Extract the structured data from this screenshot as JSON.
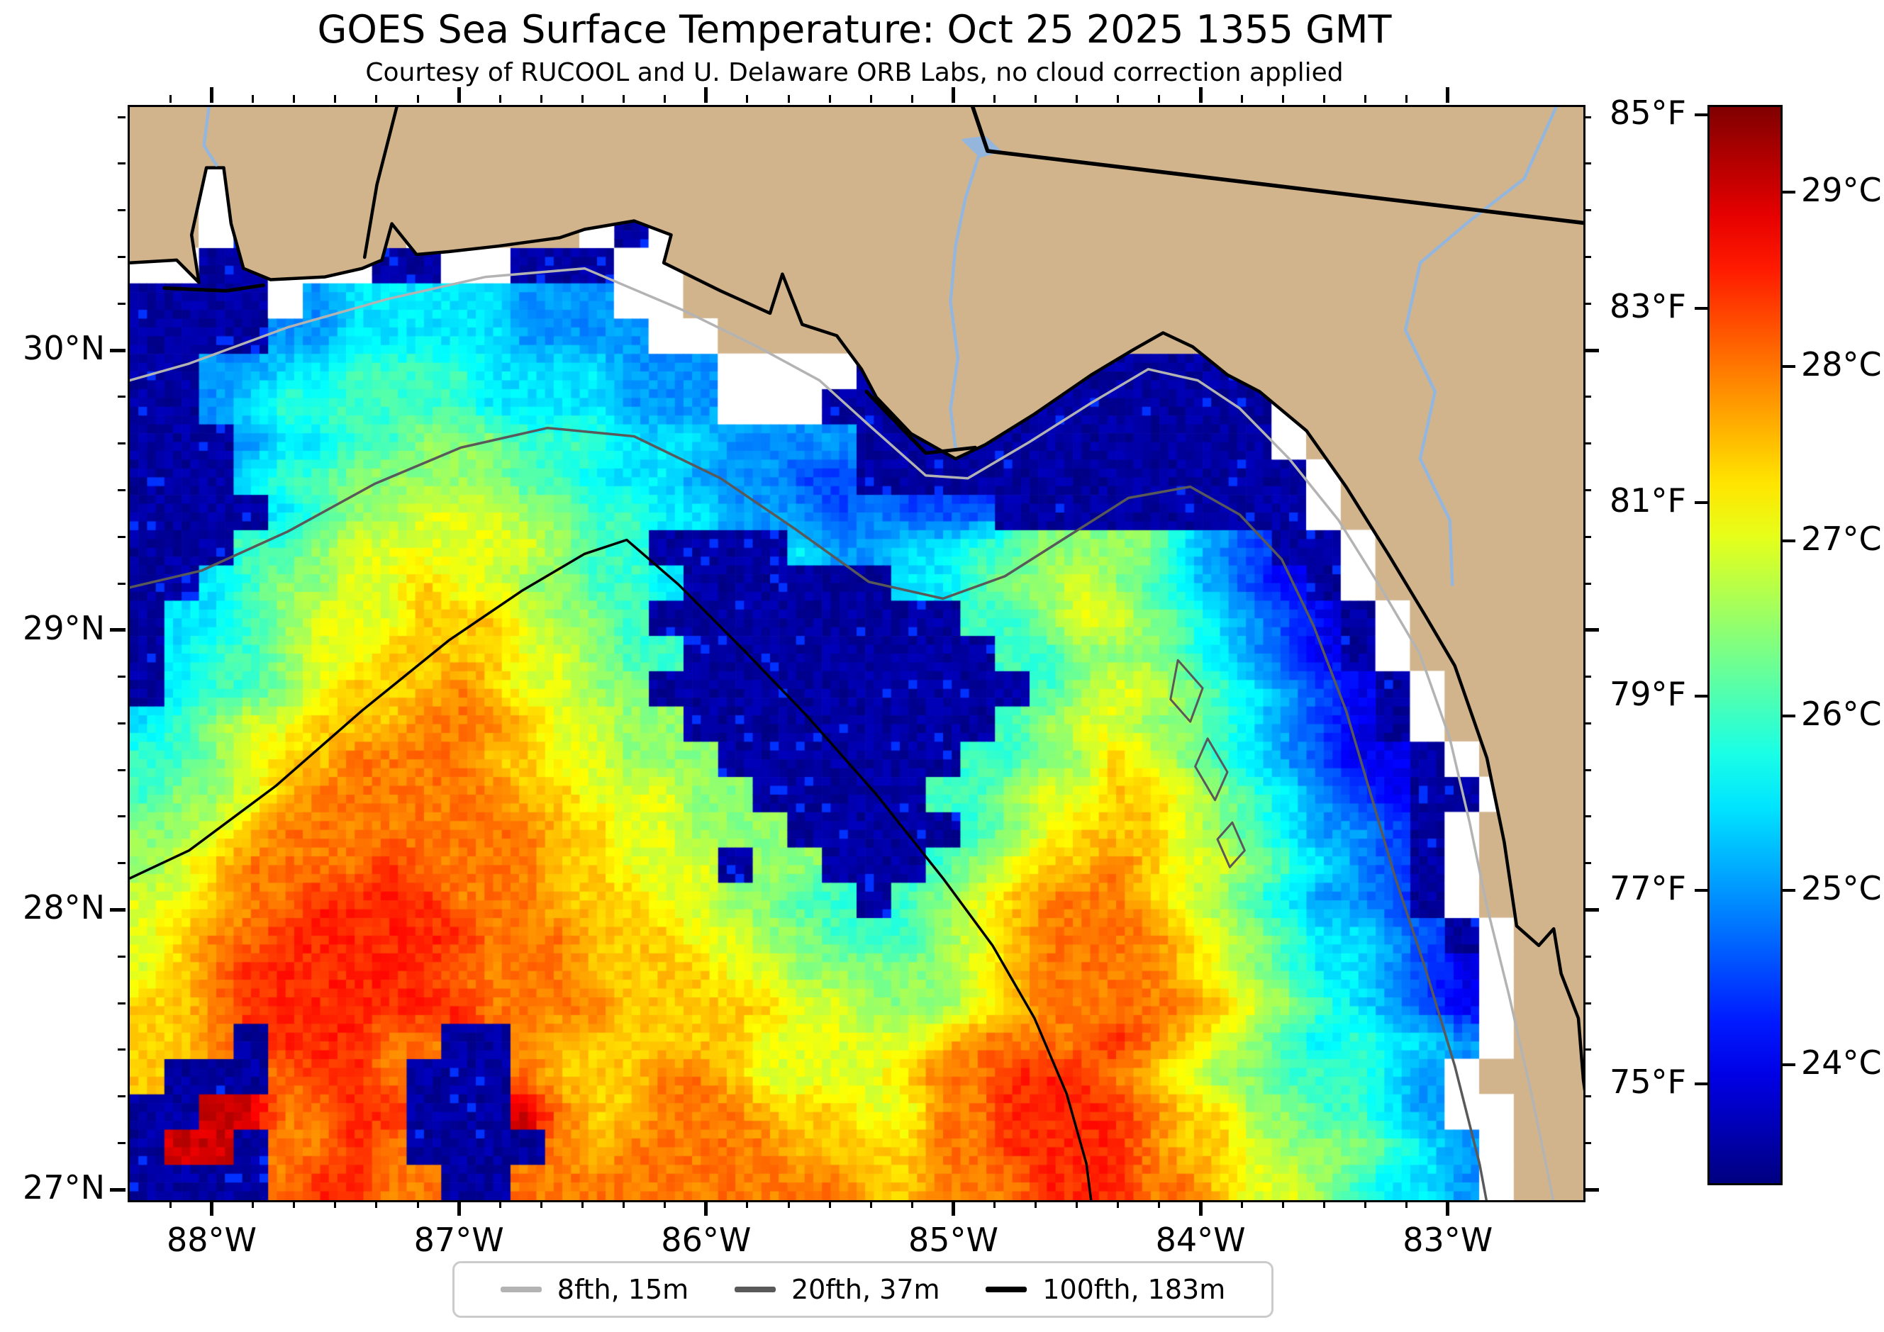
{
  "chart_data": {
    "type": "heatmap",
    "title": "GOES Sea Surface Temperature: Oct 25 2025 1355 GMT",
    "subtitle": "Courtesy of RUCOOL and U. Delaware ORB Labs, no cloud correction applied",
    "axes": {
      "lon_left": 88.34,
      "lon_right": 82.46,
      "lat_top": 30.877,
      "lat_bottom": 26.97,
      "x_ticks": [
        {
          "value": 88,
          "label": "88°W"
        },
        {
          "value": 87,
          "label": "87°W"
        },
        {
          "value": 86,
          "label": "86°W"
        },
        {
          "value": 85,
          "label": "85°W"
        },
        {
          "value": 84,
          "label": "84°W"
        },
        {
          "value": 83,
          "label": "83°W"
        }
      ],
      "y_ticks": [
        {
          "value": 30,
          "label": "30°N"
        },
        {
          "value": 29,
          "label": "29°N"
        },
        {
          "value": 28,
          "label": "28°N"
        },
        {
          "value": 27,
          "label": "27°N"
        }
      ],
      "minor_step_deg": 0.16667,
      "grid": false
    },
    "colorbar": {
      "colormap": "jet",
      "temp_min_f": 74.0,
      "temp_max_f": 85.1,
      "temp_min_c": 23.33,
      "temp_max_c": 29.5,
      "f_ticks": [
        {
          "value": 85,
          "label": "85°F"
        },
        {
          "value": 83,
          "label": "83°F"
        },
        {
          "value": 81,
          "label": "81°F"
        },
        {
          "value": 79,
          "label": "79°F"
        },
        {
          "value": 77,
          "label": "77°F"
        },
        {
          "value": 75,
          "label": "75°F"
        }
      ],
      "c_ticks": [
        {
          "value": 29,
          "label": "29°C"
        },
        {
          "value": 28,
          "label": "28°C"
        },
        {
          "value": 27,
          "label": "27°C"
        },
        {
          "value": 26,
          "label": "26°C"
        },
        {
          "value": 25,
          "label": "25°C"
        },
        {
          "value": 24,
          "label": "24°C"
        }
      ]
    },
    "legend": {
      "items": [
        {
          "label": "8fth, 15m",
          "color": "#b3b3b3"
        },
        {
          "label": "20fth, 37m",
          "color": "#595959"
        },
        {
          "label": "100fth, 183m",
          "color": "#000000"
        }
      ]
    },
    "colors": {
      "land": "#d2b48c",
      "mask": "#ffffff",
      "coast": "#000000",
      "river": "#94b6dc",
      "border": "#000000",
      "contour_8fth": "#b3b3b3",
      "contour_20fth": "#595959",
      "contour_100fth": "#000000"
    },
    "sst_grid": {
      "comment": "42 cols x 31 rows, west->east / north->south. L=land w=cloud-free coastal mask (white). X=cloud/cold mask (dark navy). Digits/R = SST degC: 0=24.0 1=24.5 2=25.0 3=25.5 4=26.0 5=26.5 6=27.0 7=27.5 8=28.0 9=28.5 R=29.0",
      "code_temps_c": {
        "X": 23.42,
        "0": 24.0,
        "1": 24.5,
        "2": 25.0,
        "3": 25.5,
        "4": 26.0,
        "5": 26.5,
        "6": 27.0,
        "7": 27.5,
        "8": 28.0,
        "9": 28.5,
        "R": 29.0
      },
      "rows": [
        "LLLLLLLLLLLLLLLLLLLLLLLLLLLLLLLLLLLLLLLLLL",
        "LLwXLLLLLLLLLLLLLLLLLLLLLLLLLLLLLLLLLLLLLL",
        "LLwXwLLLLLLLLLLLLLLLLLLLLLLLLLLLLLLLLLLLLL",
        "LLwXwLLLwXLLLwXwLLLLLLLLLLLLLLLLLLLLLLLLLL",
        "wwXXwwwXXwwXXXwwLLLLLLLLLLLLLLLLLLLLLLLLLL",
        "XXXXw233333222wwLLLLLLLLLLLLLLLLLLLLLLLLLL",
        "XXXX22333332222wwLLLLLLLLLLLLLLLLLLLLLLLLL",
        "XX223344443333222wwwwXXXXXXXXXXXXwLLLLLLLL",
        "XX234444443333222wwwXXXXXXXXXXXXXwLLLLLLLL",
        "XXX23344555444333222 2XXXXXXXXXXXXwLLLLLLL",
        "XXX344555554433322211XXXXXXXXXXXXXwLLLLLLL",
        "XXXX34556665544332221211 1XXXXXXXXXwLLLLLL",
        "XXX445666666544XXXX3223344555532 1XXwLLLLL",
        "XX345566766554 43XXXXXX3345565432 10XwLLLL",
        "X3345666777655 4XXXXXXXXX44566543210XwLLLL",
        "X34456677776654 4XXXXXXXXX44555432 10XwLLL",
        "X344567778766 55XXXXXXXXXXX456654321 0XwLL",
        "345667778887665 5XXXXXXXXX456655432 10XwLL",
        "44567788887766555XXXXXXX44557654321 00XwLL",
        "455678888887766655XXXXX44566776543210XXwLL",
        "556788888888776655 5XXXXX45677765432 21XwL",
        "5678888988887766 6X55XXX456778766543 21XwL",
        "66788999988877766554 4X4567888765432 21XwL",
        "678899999988877766554445678888765433 21XwL",
        "6789999998888777766555556788887654332 10wL",
        "778999999988887777766555678888876543 210wL",
        "778X99988XX877777766666788889876543 4332wL",
        "7XXX8998XXX877788766667889998765 54 4432wL",
        "XXRR8899XXXR877888777668899998775 54 432ww",
        "XRRX8898XXXX878888877778899998776 555 432w",
        "XXXX89988XX8888888888778889998876 65 4332w"
      ]
    },
    "geography": {
      "coast": [
        [
          88.34,
          30.32
        ],
        [
          88.15,
          30.33
        ],
        [
          88.06,
          30.25
        ],
        [
          88.09,
          30.42
        ],
        [
          88.03,
          30.66
        ],
        [
          87.96,
          30.66
        ],
        [
          87.93,
          30.46
        ],
        [
          87.88,
          30.3
        ],
        [
          87.77,
          30.26
        ],
        [
          87.55,
          30.27
        ],
        [
          87.4,
          30.3
        ],
        [
          87.32,
          30.33
        ],
        [
          87.28,
          30.46
        ],
        [
          87.18,
          30.35
        ],
        [
          87.05,
          30.36
        ],
        [
          86.85,
          30.38
        ],
        [
          86.6,
          30.41
        ],
        [
          86.5,
          30.44
        ],
        [
          86.3,
          30.47
        ],
        [
          86.15,
          30.42
        ],
        [
          86.18,
          30.32
        ],
        [
          85.95,
          30.22
        ],
        [
          85.75,
          30.14
        ],
        [
          85.7,
          30.28
        ],
        [
          85.62,
          30.1
        ],
        [
          85.48,
          30.06
        ],
        [
          85.38,
          29.94
        ],
        [
          85.32,
          29.84
        ],
        [
          85.18,
          29.71
        ],
        [
          85.0,
          29.62
        ],
        [
          84.88,
          29.67
        ],
        [
          84.68,
          29.78
        ],
        [
          84.45,
          29.92
        ],
        [
          84.28,
          30.01
        ],
        [
          84.16,
          30.07
        ],
        [
          84.04,
          30.02
        ],
        [
          83.9,
          29.92
        ],
        [
          83.77,
          29.86
        ],
        [
          83.58,
          29.72
        ],
        [
          83.42,
          29.52
        ],
        [
          83.25,
          29.28
        ],
        [
          83.1,
          29.06
        ],
        [
          82.98,
          28.88
        ],
        [
          82.85,
          28.55
        ],
        [
          82.78,
          28.25
        ],
        [
          82.73,
          27.95
        ],
        [
          82.64,
          27.88
        ],
        [
          82.58,
          27.94
        ],
        [
          82.55,
          27.78
        ],
        [
          82.48,
          27.62
        ],
        [
          82.46,
          27.4
        ],
        [
          82.42,
          27.15
        ],
        [
          82.37,
          26.96
        ]
      ],
      "barrier_islands": [
        [
          [
            88.2,
            30.23
          ],
          [
            87.95,
            30.22
          ],
          [
            87.8,
            30.24
          ]
        ],
        [
          [
            85.36,
            29.86
          ],
          [
            85.12,
            29.64
          ],
          [
            84.92,
            29.66
          ]
        ]
      ],
      "rivers": [
        [
          [
            88.02,
            30.877
          ],
          [
            88.04,
            30.74
          ],
          [
            87.99,
            30.67
          ]
        ],
        [
          [
            84.9,
            30.72
          ],
          [
            84.96,
            30.55
          ],
          [
            85.0,
            30.38
          ],
          [
            85.02,
            30.18
          ],
          [
            84.99,
            29.98
          ],
          [
            85.02,
            29.8
          ],
          [
            85.0,
            29.66
          ]
        ],
        [
          [
            82.57,
            30.877
          ],
          [
            82.7,
            30.62
          ],
          [
            82.92,
            30.47
          ],
          [
            83.12,
            30.32
          ],
          [
            83.18,
            30.08
          ],
          [
            83.06,
            29.86
          ],
          [
            83.12,
            29.62
          ],
          [
            83.0,
            29.4
          ],
          [
            82.99,
            29.17
          ]
        ]
      ],
      "lake": [
        [
          84.97,
          30.76
        ],
        [
          84.88,
          30.77
        ],
        [
          84.82,
          30.72
        ],
        [
          84.9,
          30.7
        ]
      ],
      "state_borders": [
        [
          [
            87.26,
            30.877
          ],
          [
            87.34,
            30.6
          ],
          [
            87.39,
            30.34
          ]
        ],
        [
          [
            84.93,
            30.877
          ],
          [
            84.87,
            30.72
          ],
          [
            82.34,
            30.45
          ]
        ]
      ],
      "contour_8fth": [
        [
          88.34,
          29.9
        ],
        [
          88.1,
          29.96
        ],
        [
          87.7,
          30.09
        ],
        [
          87.3,
          30.19
        ],
        [
          86.9,
          30.27
        ],
        [
          86.5,
          30.3
        ],
        [
          86.1,
          30.15
        ],
        [
          85.8,
          30.02
        ],
        [
          85.55,
          29.9
        ],
        [
          85.35,
          29.74
        ],
        [
          85.12,
          29.56
        ],
        [
          84.95,
          29.55
        ],
        [
          84.7,
          29.68
        ],
        [
          84.45,
          29.82
        ],
        [
          84.22,
          29.94
        ],
        [
          84.02,
          29.9
        ],
        [
          83.85,
          29.8
        ],
        [
          83.65,
          29.62
        ],
        [
          83.45,
          29.4
        ],
        [
          83.28,
          29.16
        ],
        [
          83.12,
          28.92
        ],
        [
          83.0,
          28.62
        ],
        [
          82.92,
          28.32
        ],
        [
          82.85,
          28.02
        ],
        [
          82.76,
          27.7
        ],
        [
          82.67,
          27.35
        ],
        [
          82.6,
          27.05
        ],
        [
          82.58,
          26.96
        ]
      ],
      "contour_20fth": [
        [
          88.34,
          29.16
        ],
        [
          88.05,
          29.22
        ],
        [
          87.7,
          29.36
        ],
        [
          87.35,
          29.53
        ],
        [
          87.0,
          29.66
        ],
        [
          86.65,
          29.73
        ],
        [
          86.3,
          29.7
        ],
        [
          85.95,
          29.55
        ],
        [
          85.65,
          29.37
        ],
        [
          85.35,
          29.18
        ],
        [
          85.05,
          29.12
        ],
        [
          84.8,
          29.2
        ],
        [
          84.55,
          29.34
        ],
        [
          84.3,
          29.48
        ],
        [
          84.05,
          29.52
        ],
        [
          83.85,
          29.42
        ],
        [
          83.68,
          29.26
        ],
        [
          83.55,
          29.02
        ],
        [
          83.42,
          28.72
        ],
        [
          83.32,
          28.42
        ],
        [
          83.22,
          28.12
        ],
        [
          83.1,
          27.8
        ],
        [
          82.98,
          27.45
        ],
        [
          82.88,
          27.1
        ],
        [
          82.85,
          26.96
        ]
      ],
      "contour_100fth": [
        [
          88.34,
          28.12
        ],
        [
          88.1,
          28.22
        ],
        [
          87.75,
          28.45
        ],
        [
          87.4,
          28.72
        ],
        [
          87.05,
          28.97
        ],
        [
          86.75,
          29.15
        ],
        [
          86.5,
          29.28
        ],
        [
          86.33,
          29.33
        ],
        [
          86.12,
          29.17
        ],
        [
          85.85,
          28.93
        ],
        [
          85.6,
          28.7
        ],
        [
          85.32,
          28.42
        ],
        [
          85.05,
          28.12
        ],
        [
          84.85,
          27.88
        ],
        [
          84.68,
          27.62
        ],
        [
          84.55,
          27.35
        ],
        [
          84.47,
          27.1
        ],
        [
          84.45,
          26.96
        ]
      ],
      "middle_ground_loops": [
        [
          [
            84.1,
            28.9
          ],
          [
            84.0,
            28.8
          ],
          [
            84.05,
            28.68
          ],
          [
            84.13,
            28.76
          ]
        ],
        [
          [
            83.98,
            28.62
          ],
          [
            83.9,
            28.5
          ],
          [
            83.95,
            28.4
          ],
          [
            84.03,
            28.52
          ]
        ],
        [
          [
            83.88,
            28.32
          ],
          [
            83.83,
            28.22
          ],
          [
            83.89,
            28.16
          ],
          [
            83.94,
            28.26
          ]
        ]
      ]
    }
  }
}
